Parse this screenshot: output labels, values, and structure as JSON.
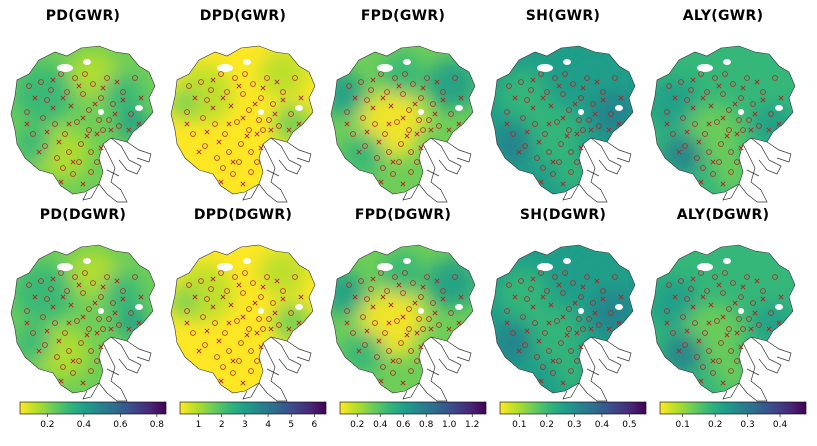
{
  "panels": [
    {
      "title": "PD(GWR)",
      "style": "mid"
    },
    {
      "title": "DPD(GWR)",
      "style": "yellow"
    },
    {
      "title": "FPD(GWR)",
      "style": "mixed"
    },
    {
      "title": "SH(GWR)",
      "style": "teal"
    },
    {
      "title": "ALY(GWR)",
      "style": "mixteal"
    },
    {
      "title": "PD(DGWR)",
      "style": "mid"
    },
    {
      "title": "DPD(DGWR)",
      "style": "yellow"
    },
    {
      "title": "FPD(DGWR)",
      "style": "mixed"
    },
    {
      "title": "SH(DGWR)",
      "style": "teal"
    },
    {
      "title": "ALY(DGWR)",
      "style": "mixteal"
    }
  ],
  "colorbars": [
    {
      "ticks": [
        "0.2",
        "0.4",
        "0.6",
        "0.8"
      ],
      "min": 0.05,
      "max": 0.85,
      "values": [
        0.2,
        0.4,
        0.6,
        0.8
      ]
    },
    {
      "ticks": [
        "1",
        "2",
        "3",
        "4",
        "5",
        "6"
      ],
      "min": 0.2,
      "max": 6.5,
      "values": [
        1,
        2,
        3,
        4,
        5,
        6
      ]
    },
    {
      "ticks": [
        "0.2",
        "0.4",
        "0.6",
        "0.8",
        "1.0",
        "1.2"
      ],
      "min": 0.05,
      "max": 1.32,
      "values": [
        0.2,
        0.4,
        0.6,
        0.8,
        1.0,
        1.2
      ]
    },
    {
      "ticks": [
        "0.1",
        "0.2",
        "0.3",
        "0.4",
        "0.5"
      ],
      "min": 0.03,
      "max": 0.56,
      "values": [
        0.1,
        0.2,
        0.3,
        0.4,
        0.5
      ]
    },
    {
      "ticks": [
        "0.1",
        "0.2",
        "0.3",
        "0.4"
      ],
      "min": 0.03,
      "max": 0.48,
      "values": [
        0.1,
        0.2,
        0.3,
        0.4
      ]
    }
  ],
  "colors": {
    "viridis_reversed": [
      "#fde725",
      "#b5de2b",
      "#6ece58",
      "#35b779",
      "#1f9e89",
      "#26828e",
      "#31688e",
      "#3e4989",
      "#482878",
      "#440154"
    ],
    "marker": "#b22222",
    "outline": "#333333"
  }
}
